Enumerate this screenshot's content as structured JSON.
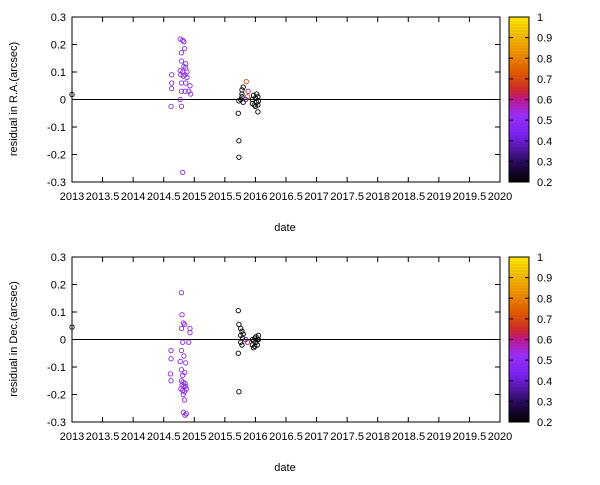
{
  "chart_data": [
    {
      "type": "scatter",
      "xlabel": "date",
      "ylabel": "residual in R.A.(arcsec)",
      "xlim": [
        2013,
        2020
      ],
      "ylim": [
        -0.3,
        0.3
      ],
      "xticks": [
        "2013",
        "2013.5",
        "2014",
        "2014.5",
        "2015",
        "2015.5",
        "2016",
        "2016.5",
        "2017",
        "2017.5",
        "2018",
        "2018.5",
        "2019",
        "2019.5",
        "2020"
      ],
      "yticks": [
        "-0.3",
        "-0.2",
        "-0.1",
        "0",
        "0.1",
        "0.2",
        "0.3"
      ],
      "zero_line": true,
      "colorbar": {
        "range": [
          0.2,
          1
        ],
        "ticks": [
          "0.2",
          "0.3",
          "0.4",
          "0.5",
          "0.6",
          "0.7",
          "0.8",
          "0.9",
          "1"
        ],
        "colors": [
          "#000000",
          "#4b0f9c",
          "#8c28ff",
          "#c8008c",
          "#d2410f",
          "#e66e00",
          "#f5aa00",
          "#ffe600"
        ]
      },
      "points": [
        {
          "x": 2013.0,
          "y": 0.018,
          "c": 0.22
        },
        {
          "x": 2014.63,
          "y": 0.09,
          "c": 0.45
        },
        {
          "x": 2014.63,
          "y": 0.06,
          "c": 0.45
        },
        {
          "x": 2014.63,
          "y": 0.04,
          "c": 0.45
        },
        {
          "x": 2014.62,
          "y": -0.025,
          "c": 0.45
        },
        {
          "x": 2014.77,
          "y": 0.22,
          "c": 0.45
        },
        {
          "x": 2014.79,
          "y": 0.17,
          "c": 0.45
        },
        {
          "x": 2014.81,
          "y": 0.215,
          "c": 0.45
        },
        {
          "x": 2014.83,
          "y": 0.21,
          "c": 0.45
        },
        {
          "x": 2014.84,
          "y": 0.185,
          "c": 0.45
        },
        {
          "x": 2014.79,
          "y": 0.14,
          "c": 0.45
        },
        {
          "x": 2014.86,
          "y": 0.13,
          "c": 0.45
        },
        {
          "x": 2014.83,
          "y": 0.12,
          "c": 0.45
        },
        {
          "x": 2014.86,
          "y": 0.115,
          "c": 0.45
        },
        {
          "x": 2014.77,
          "y": 0.105,
          "c": 0.45
        },
        {
          "x": 2014.81,
          "y": 0.1,
          "c": 0.45
        },
        {
          "x": 2014.88,
          "y": 0.1,
          "c": 0.45
        },
        {
          "x": 2014.78,
          "y": 0.09,
          "c": 0.45
        },
        {
          "x": 2014.85,
          "y": 0.09,
          "c": 0.45
        },
        {
          "x": 2014.82,
          "y": 0.085,
          "c": 0.45
        },
        {
          "x": 2014.88,
          "y": 0.08,
          "c": 0.45
        },
        {
          "x": 2014.79,
          "y": 0.06,
          "c": 0.45
        },
        {
          "x": 2014.86,
          "y": 0.06,
          "c": 0.45
        },
        {
          "x": 2014.93,
          "y": 0.05,
          "c": 0.45
        },
        {
          "x": 2014.79,
          "y": 0.03,
          "c": 0.45
        },
        {
          "x": 2014.85,
          "y": 0.03,
          "c": 0.45
        },
        {
          "x": 2014.91,
          "y": 0.03,
          "c": 0.45
        },
        {
          "x": 2014.94,
          "y": 0.02,
          "c": 0.45
        },
        {
          "x": 2014.77,
          "y": 0.0,
          "c": 0.45
        },
        {
          "x": 2014.79,
          "y": -0.025,
          "c": 0.45
        },
        {
          "x": 2014.81,
          "y": -0.265,
          "c": 0.45
        },
        {
          "x": 2015.72,
          "y": -0.05,
          "c": 0.22
        },
        {
          "x": 2015.73,
          "y": -0.15,
          "c": 0.22
        },
        {
          "x": 2015.73,
          "y": -0.21,
          "c": 0.22
        },
        {
          "x": 2015.73,
          "y": -0.005,
          "c": 0.22
        },
        {
          "x": 2015.76,
          "y": 0.0,
          "c": 0.22
        },
        {
          "x": 2015.78,
          "y": 0.02,
          "c": 0.22
        },
        {
          "x": 2015.78,
          "y": 0.035,
          "c": 0.22
        },
        {
          "x": 2015.78,
          "y": 0.01,
          "c": 0.22
        },
        {
          "x": 2015.8,
          "y": 0.045,
          "c": 0.22
        },
        {
          "x": 2015.8,
          "y": -0.01,
          "c": 0.22
        },
        {
          "x": 2015.84,
          "y": 0.0,
          "c": 0.35
        },
        {
          "x": 2015.85,
          "y": 0.065,
          "c": 0.62
        },
        {
          "x": 2015.88,
          "y": 0.03,
          "c": 0.55
        },
        {
          "x": 2015.87,
          "y": 0.01,
          "c": 0.6
        },
        {
          "x": 2015.95,
          "y": 0.0,
          "c": 0.22
        },
        {
          "x": 2015.95,
          "y": -0.015,
          "c": 0.22
        },
        {
          "x": 2015.97,
          "y": 0.015,
          "c": 0.22
        },
        {
          "x": 2015.98,
          "y": -0.02,
          "c": 0.22
        },
        {
          "x": 2016.0,
          "y": 0.005,
          "c": 0.22
        },
        {
          "x": 2016.0,
          "y": -0.025,
          "c": 0.22
        },
        {
          "x": 2016.02,
          "y": 0.02,
          "c": 0.22
        },
        {
          "x": 2016.02,
          "y": -0.01,
          "c": 0.22
        },
        {
          "x": 2016.04,
          "y": 0.01,
          "c": 0.22
        },
        {
          "x": 2016.04,
          "y": -0.02,
          "c": 0.22
        },
        {
          "x": 2016.04,
          "y": -0.045,
          "c": 0.22
        },
        {
          "x": 2016.05,
          "y": -0.005,
          "c": 0.22
        }
      ]
    },
    {
      "type": "scatter",
      "xlabel": "date",
      "ylabel": "residual in Dec.(arcsec)",
      "xlim": [
        2013,
        2020
      ],
      "ylim": [
        -0.3,
        0.3
      ],
      "xticks": [
        "2013",
        "2013.5",
        "2014",
        "2014.5",
        "2015",
        "2015.5",
        "2016",
        "2016.5",
        "2017",
        "2017.5",
        "2018",
        "2018.5",
        "2019",
        "2019.5",
        "2020"
      ],
      "yticks": [
        "-0.3",
        "-0.2",
        "-0.1",
        "0",
        "0.1",
        "0.2",
        "0.3"
      ],
      "zero_line": true,
      "colorbar": {
        "range": [
          0.2,
          1
        ],
        "ticks": [
          "0.2",
          "0.3",
          "0.4",
          "0.5",
          "0.6",
          "0.7",
          "0.8",
          "0.9",
          "1"
        ],
        "colors": [
          "#000000",
          "#4b0f9c",
          "#8c28ff",
          "#c8008c",
          "#d2410f",
          "#e66e00",
          "#f5aa00",
          "#ffe600"
        ]
      },
      "points": [
        {
          "x": 2013.0,
          "y": 0.045,
          "c": 0.22
        },
        {
          "x": 2014.62,
          "y": -0.04,
          "c": 0.45
        },
        {
          "x": 2014.62,
          "y": -0.07,
          "c": 0.45
        },
        {
          "x": 2014.61,
          "y": -0.125,
          "c": 0.45
        },
        {
          "x": 2014.62,
          "y": -0.15,
          "c": 0.45
        },
        {
          "x": 2014.79,
          "y": 0.17,
          "c": 0.45
        },
        {
          "x": 2014.8,
          "y": 0.09,
          "c": 0.45
        },
        {
          "x": 2014.82,
          "y": 0.06,
          "c": 0.45
        },
        {
          "x": 2014.79,
          "y": 0.04,
          "c": 0.45
        },
        {
          "x": 2014.84,
          "y": 0.055,
          "c": 0.45
        },
        {
          "x": 2014.93,
          "y": 0.04,
          "c": 0.45
        },
        {
          "x": 2014.93,
          "y": 0.025,
          "c": 0.45
        },
        {
          "x": 2014.81,
          "y": -0.01,
          "c": 0.45
        },
        {
          "x": 2014.91,
          "y": -0.01,
          "c": 0.45
        },
        {
          "x": 2014.79,
          "y": -0.04,
          "c": 0.45
        },
        {
          "x": 2014.83,
          "y": -0.06,
          "c": 0.45
        },
        {
          "x": 2014.77,
          "y": -0.08,
          "c": 0.45
        },
        {
          "x": 2014.86,
          "y": -0.085,
          "c": 0.45
        },
        {
          "x": 2014.79,
          "y": -0.11,
          "c": 0.45
        },
        {
          "x": 2014.81,
          "y": -0.13,
          "c": 0.45
        },
        {
          "x": 2014.84,
          "y": -0.12,
          "c": 0.45
        },
        {
          "x": 2014.79,
          "y": -0.15,
          "c": 0.45
        },
        {
          "x": 2014.82,
          "y": -0.155,
          "c": 0.45
        },
        {
          "x": 2014.85,
          "y": -0.16,
          "c": 0.45
        },
        {
          "x": 2014.8,
          "y": -0.165,
          "c": 0.45
        },
        {
          "x": 2014.83,
          "y": -0.17,
          "c": 0.45
        },
        {
          "x": 2014.86,
          "y": -0.17,
          "c": 0.45
        },
        {
          "x": 2014.78,
          "y": -0.18,
          "c": 0.45
        },
        {
          "x": 2014.81,
          "y": -0.185,
          "c": 0.45
        },
        {
          "x": 2014.84,
          "y": -0.19,
          "c": 0.45
        },
        {
          "x": 2014.87,
          "y": -0.18,
          "c": 0.45
        },
        {
          "x": 2014.82,
          "y": -0.2,
          "c": 0.45
        },
        {
          "x": 2014.84,
          "y": -0.22,
          "c": 0.45
        },
        {
          "x": 2014.82,
          "y": -0.265,
          "c": 0.45
        },
        {
          "x": 2014.85,
          "y": -0.275,
          "c": 0.45
        },
        {
          "x": 2014.87,
          "y": -0.27,
          "c": 0.45
        },
        {
          "x": 2015.72,
          "y": 0.105,
          "c": 0.22
        },
        {
          "x": 2015.73,
          "y": 0.055,
          "c": 0.22
        },
        {
          "x": 2015.72,
          "y": -0.05,
          "c": 0.22
        },
        {
          "x": 2015.73,
          "y": -0.19,
          "c": 0.22
        },
        {
          "x": 2015.76,
          "y": 0.04,
          "c": 0.22
        },
        {
          "x": 2015.76,
          "y": 0.015,
          "c": 0.22
        },
        {
          "x": 2015.76,
          "y": -0.01,
          "c": 0.22
        },
        {
          "x": 2015.78,
          "y": 0.03,
          "c": 0.22
        },
        {
          "x": 2015.79,
          "y": 0.005,
          "c": 0.22
        },
        {
          "x": 2015.78,
          "y": -0.02,
          "c": 0.22
        },
        {
          "x": 2015.8,
          "y": 0.02,
          "c": 0.22
        },
        {
          "x": 2015.84,
          "y": 0.0,
          "c": 0.35
        },
        {
          "x": 2015.87,
          "y": -0.01,
          "c": 0.55
        },
        {
          "x": 2015.95,
          "y": 0.0,
          "c": 0.22
        },
        {
          "x": 2015.95,
          "y": -0.02,
          "c": 0.22
        },
        {
          "x": 2015.97,
          "y": -0.03,
          "c": 0.22
        },
        {
          "x": 2015.97,
          "y": -0.005,
          "c": 0.22
        },
        {
          "x": 2015.99,
          "y": 0.005,
          "c": 0.22
        },
        {
          "x": 2015.99,
          "y": -0.025,
          "c": 0.22
        },
        {
          "x": 2016.01,
          "y": 0.01,
          "c": 0.22
        },
        {
          "x": 2016.01,
          "y": -0.01,
          "c": 0.22
        },
        {
          "x": 2016.03,
          "y": 0.0,
          "c": 0.22
        },
        {
          "x": 2016.03,
          "y": -0.02,
          "c": 0.22
        },
        {
          "x": 2016.05,
          "y": 0.015,
          "c": 0.22
        },
        {
          "x": 2016.05,
          "y": 0.0,
          "c": 0.22
        }
      ]
    }
  ]
}
